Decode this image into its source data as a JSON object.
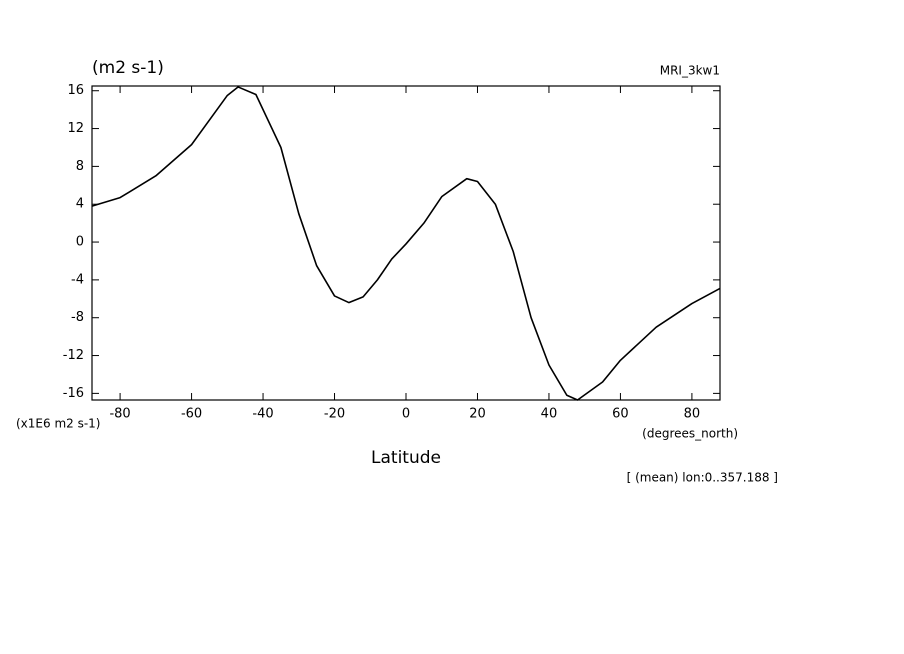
{
  "chart_data": {
    "type": "line",
    "title": "(m2 s-1)",
    "subtitle": "MRI_3kw1",
    "y_label": "(x1E6 m2 s-1)",
    "x_label": "Latitude",
    "x_units": "(degrees_north)",
    "annotation": "[ (mean) lon:0..357.188 ]",
    "color": "#000000",
    "x": [
      -87.86,
      -80,
      -70,
      -60,
      -50,
      -47,
      -42,
      -35,
      -30,
      -25,
      -20,
      -16,
      -12,
      -8,
      -4,
      0,
      5,
      10,
      17,
      20,
      25,
      30,
      35,
      40,
      45,
      48,
      55,
      60,
      70,
      80,
      87.86
    ],
    "values": [
      3.8,
      4.7,
      7,
      10.3,
      15.5,
      16.4,
      15.6,
      10,
      3,
      -2.5,
      -5.7,
      -6.4,
      -5.8,
      -4,
      -1.8,
      -0.2,
      2,
      4.8,
      6.7,
      6.4,
      4,
      -1,
      -8,
      -13,
      -16.2,
      -16.7,
      -14.8,
      -12.5,
      -9,
      -6.5,
      -4.9
    ],
    "xlim": [
      -87.86,
      87.86
    ],
    "ylim": [
      -16.7,
      16.5
    ],
    "xticks": [
      -80,
      -60,
      -40,
      -20,
      0,
      20,
      40,
      60,
      80
    ],
    "yticks": [
      -16,
      -12,
      -8,
      -4,
      0,
      4,
      8,
      12,
      16
    ]
  }
}
